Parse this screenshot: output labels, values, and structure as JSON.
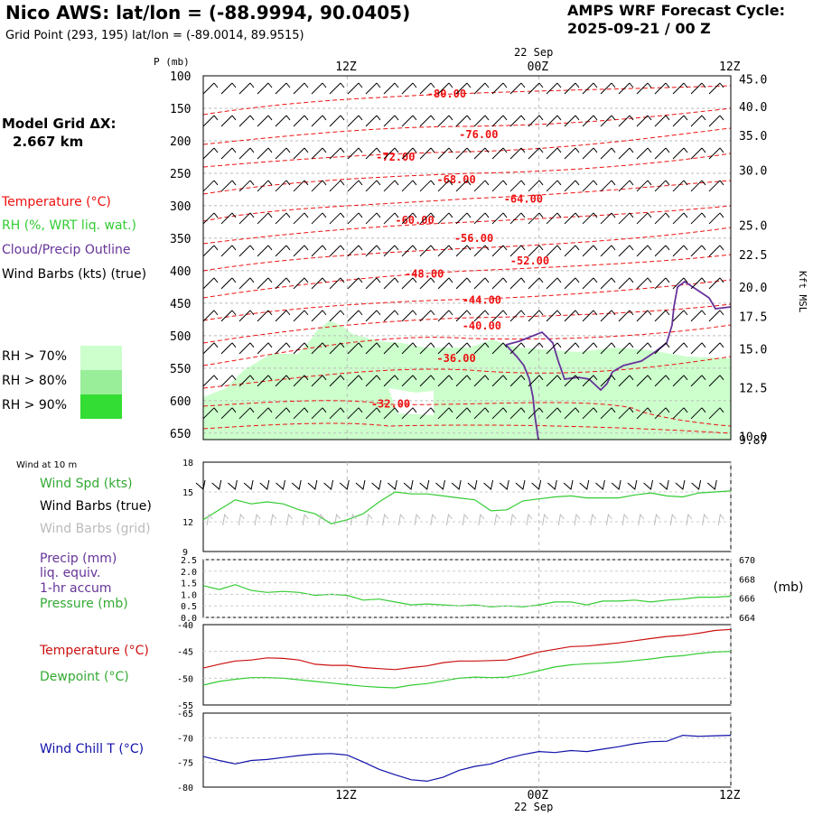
{
  "header": {
    "title": "Nico AWS:  lat/lon = (-88.9994, 90.0405)",
    "subtitle": "Grid Point (293, 195) lat/lon = (-89.0014, 89.9515)",
    "cycle_line1": "AMPS WRF Forecast Cycle:",
    "cycle_line2": "2025-09-21 / 00  Z"
  },
  "model_grid": {
    "label": "Model Grid ΔX:",
    "value": "2.667 km"
  },
  "legend": {
    "temperature": "Temperature (°C)",
    "rh": "RH (%, WRT liq. wat.)",
    "cloud": "Cloud/Precip Outline",
    "wind": "Wind Barbs (kts) (true)",
    "rh_levels": [
      "RH > 70%",
      "RH > 80%",
      "RH > 90%"
    ],
    "rh_colors": [
      "#ccffcc",
      "#99ee99",
      "#33dd33"
    ]
  },
  "colors": {
    "temperature": "#ee1111",
    "rh": "#33cc33",
    "cloud": "#663399",
    "wind_chill": "#1111aa",
    "grid_barbs": "#bbbbbb"
  },
  "time_axis": {
    "top_date": "22 Sep",
    "bottom_date": "22 Sep",
    "labels": [
      {
        "t": 9,
        "label": "12Z"
      },
      {
        "t": 21,
        "label": "00Z"
      },
      {
        "t": 33,
        "label": "12Z"
      }
    ],
    "range_hours": [
      0,
      33
    ]
  },
  "chart_data": [
    {
      "type": "heatmap",
      "ylabel": "P (mb)",
      "ylabel_right": "Kft MSL",
      "pressure_levels": [
        100,
        150,
        200,
        250,
        300,
        350,
        400,
        450,
        500,
        550,
        600,
        650
      ],
      "ylim": [
        100,
        660
      ],
      "height_ticks": [
        {
          "p": 105,
          "label": "45.0"
        },
        {
          "p": 147,
          "label": "40.0"
        },
        {
          "p": 192,
          "label": "35.0"
        },
        {
          "p": 245,
          "label": "30.0"
        },
        {
          "p": 330,
          "label": "25.0"
        },
        {
          "p": 375,
          "label": "22.5"
        },
        {
          "p": 425,
          "label": "20.0"
        },
        {
          "p": 470,
          "label": "17.5"
        },
        {
          "p": 520,
          "label": "15.0"
        },
        {
          "p": 580,
          "label": "12.5"
        },
        {
          "p": 655,
          "label": "10.0"
        },
        {
          "p": 660,
          "label": "9.87"
        }
      ],
      "temperature_labels": [
        {
          "t": 14,
          "p": 128,
          "label": "-80.00"
        },
        {
          "t": 16,
          "p": 190,
          "label": "-76.00"
        },
        {
          "t": 10.8,
          "p": 225,
          "label": "-72.00"
        },
        {
          "t": 14.6,
          "p": 260,
          "label": "-68.00"
        },
        {
          "t": 18.8,
          "p": 290,
          "label": "-64.00"
        },
        {
          "t": 12,
          "p": 322,
          "label": "-60.00"
        },
        {
          "t": 15.7,
          "p": 350,
          "label": "-56.00"
        },
        {
          "t": 19.2,
          "p": 385,
          "label": "-52.00"
        },
        {
          "t": 12.6,
          "p": 405,
          "label": "-48.00"
        },
        {
          "t": 16.2,
          "p": 445,
          "label": "-44.00"
        },
        {
          "t": 16.2,
          "p": 485,
          "label": "-40.00"
        },
        {
          "t": 14.6,
          "p": 535,
          "label": "-36.00"
        },
        {
          "t": 10.5,
          "p": 605,
          "label": "-32.00"
        }
      ],
      "wind_barbs_true_kts": "shown for every level at hourly intervals"
    },
    {
      "type": "line",
      "title": "Wind at 10 m",
      "series": [
        {
          "name": "Wind Spd (kts)",
          "x": [
            0,
            1,
            2,
            3,
            4,
            5,
            6,
            7,
            8,
            9,
            10,
            11,
            12,
            13,
            14,
            15,
            16,
            17,
            18,
            19,
            20,
            21,
            22,
            23,
            24,
            25,
            26,
            27,
            28,
            29,
            30,
            31,
            32,
            33
          ],
          "values": [
            12.2,
            13.2,
            14.2,
            13.8,
            14.0,
            13.8,
            13.2,
            12.8,
            11.8,
            12.2,
            12.8,
            14.0,
            15.0,
            14.8,
            14.8,
            14.6,
            14.4,
            14.2,
            13.1,
            13.2,
            14.1,
            14.3,
            14.5,
            14.6,
            14.4,
            14.4,
            14.4,
            14.7,
            14.9,
            14.6,
            14.5,
            14.9,
            15.0,
            15.1
          ]
        }
      ],
      "extra_labels": [
        "Wind Barbs (true)",
        "Wind Barbs (grid)"
      ],
      "ylim": [
        9,
        18
      ],
      "yticks": [
        9,
        12,
        15,
        18
      ]
    },
    {
      "type": "line",
      "series": [
        {
          "name": "Pressure (mb)",
          "x": [
            0,
            1,
            2,
            3,
            4,
            5,
            6,
            7,
            8,
            9,
            10,
            11,
            12,
            13,
            14,
            15,
            16,
            17,
            18,
            19,
            20,
            21,
            22,
            23,
            24,
            25,
            26,
            27,
            28,
            29,
            30,
            31,
            32,
            33
          ],
          "values": [
            667.3,
            666.9,
            667.4,
            666.8,
            666.6,
            666.7,
            666.6,
            666.3,
            666.4,
            666.3,
            665.8,
            665.9,
            665.6,
            665.3,
            665.4,
            665.3,
            665.2,
            665.3,
            665.1,
            665.2,
            665.1,
            665.3,
            665.6,
            665.6,
            665.3,
            665.7,
            665.7,
            665.8,
            665.6,
            665.8,
            665.9,
            666.1,
            666.1,
            666.2
          ]
        }
      ],
      "left_labels": [
        "Precip (mm)",
        "liq. equiv.",
        "1-hr accum"
      ],
      "yticks_left": [
        "0.0",
        "0.5",
        "1.0",
        "1.5",
        "2.0",
        "2.5"
      ],
      "yticks_right": [
        "664",
        "666",
        "668",
        "670"
      ],
      "right_unit": "(mb)",
      "ylim": [
        664,
        670
      ]
    },
    {
      "type": "line",
      "series": [
        {
          "name": "Temperature (°C)",
          "x": [
            0,
            1,
            2,
            3,
            4,
            5,
            6,
            7,
            8,
            9,
            10,
            11,
            12,
            13,
            14,
            15,
            16,
            17,
            18,
            19,
            20,
            21,
            22,
            23,
            24,
            25,
            26,
            27,
            28,
            29,
            30,
            31,
            32,
            33
          ],
          "values": [
            -48.1,
            -47.4,
            -46.8,
            -46.6,
            -46.2,
            -46.3,
            -46.6,
            -47.4,
            -47.6,
            -47.6,
            -48.0,
            -48.2,
            -48.4,
            -48.0,
            -47.7,
            -47.1,
            -46.8,
            -46.8,
            -46.7,
            -46.6,
            -45.9,
            -45.1,
            -44.6,
            -44.1,
            -44.0,
            -43.7,
            -43.4,
            -43.0,
            -42.6,
            -42.2,
            -42.0,
            -41.6,
            -41.1,
            -40.9
          ]
        },
        {
          "name": "Dewpoint (°C)",
          "x": [
            0,
            1,
            2,
            3,
            4,
            5,
            6,
            7,
            8,
            9,
            10,
            11,
            12,
            13,
            14,
            15,
            16,
            17,
            18,
            19,
            20,
            21,
            22,
            23,
            24,
            25,
            26,
            27,
            28,
            29,
            30,
            31,
            32,
            33
          ],
          "values": [
            -51.3,
            -50.6,
            -50.2,
            -49.9,
            -49.9,
            -50.0,
            -50.3,
            -50.6,
            -50.9,
            -51.2,
            -51.5,
            -51.7,
            -51.8,
            -51.3,
            -51.0,
            -50.5,
            -50.0,
            -49.8,
            -49.9,
            -49.8,
            -49.3,
            -48.6,
            -47.9,
            -47.5,
            -47.3,
            -47.2,
            -47.0,
            -46.7,
            -46.4,
            -46.0,
            -45.8,
            -45.4,
            -45.1,
            -45.0
          ]
        }
      ],
      "ylim": [
        -55,
        -40
      ],
      "yticks": [
        -55,
        -50,
        -45,
        -40
      ]
    },
    {
      "type": "line",
      "series": [
        {
          "name": "Wind Chill T (°C)",
          "x": [
            0,
            1,
            2,
            3,
            4,
            5,
            6,
            7,
            8,
            9,
            10,
            11,
            12,
            13,
            14,
            15,
            16,
            17,
            18,
            19,
            20,
            21,
            22,
            23,
            24,
            25,
            26,
            27,
            28,
            29,
            30,
            31,
            32,
            33
          ],
          "values": [
            -73.8,
            -74.6,
            -75.3,
            -74.6,
            -74.4,
            -74.0,
            -73.6,
            -73.3,
            -73.2,
            -73.5,
            -74.9,
            -76.4,
            -77.5,
            -78.5,
            -78.8,
            -78.0,
            -76.6,
            -75.8,
            -75.3,
            -74.2,
            -73.4,
            -72.8,
            -73.0,
            -72.6,
            -72.8,
            -72.3,
            -71.8,
            -71.2,
            -70.8,
            -70.7,
            -69.5,
            -69.7,
            -69.6,
            -69.5
          ]
        }
      ],
      "ylim": [
        -80,
        -65
      ],
      "yticks": [
        -80,
        -75,
        -70,
        -65
      ]
    }
  ]
}
